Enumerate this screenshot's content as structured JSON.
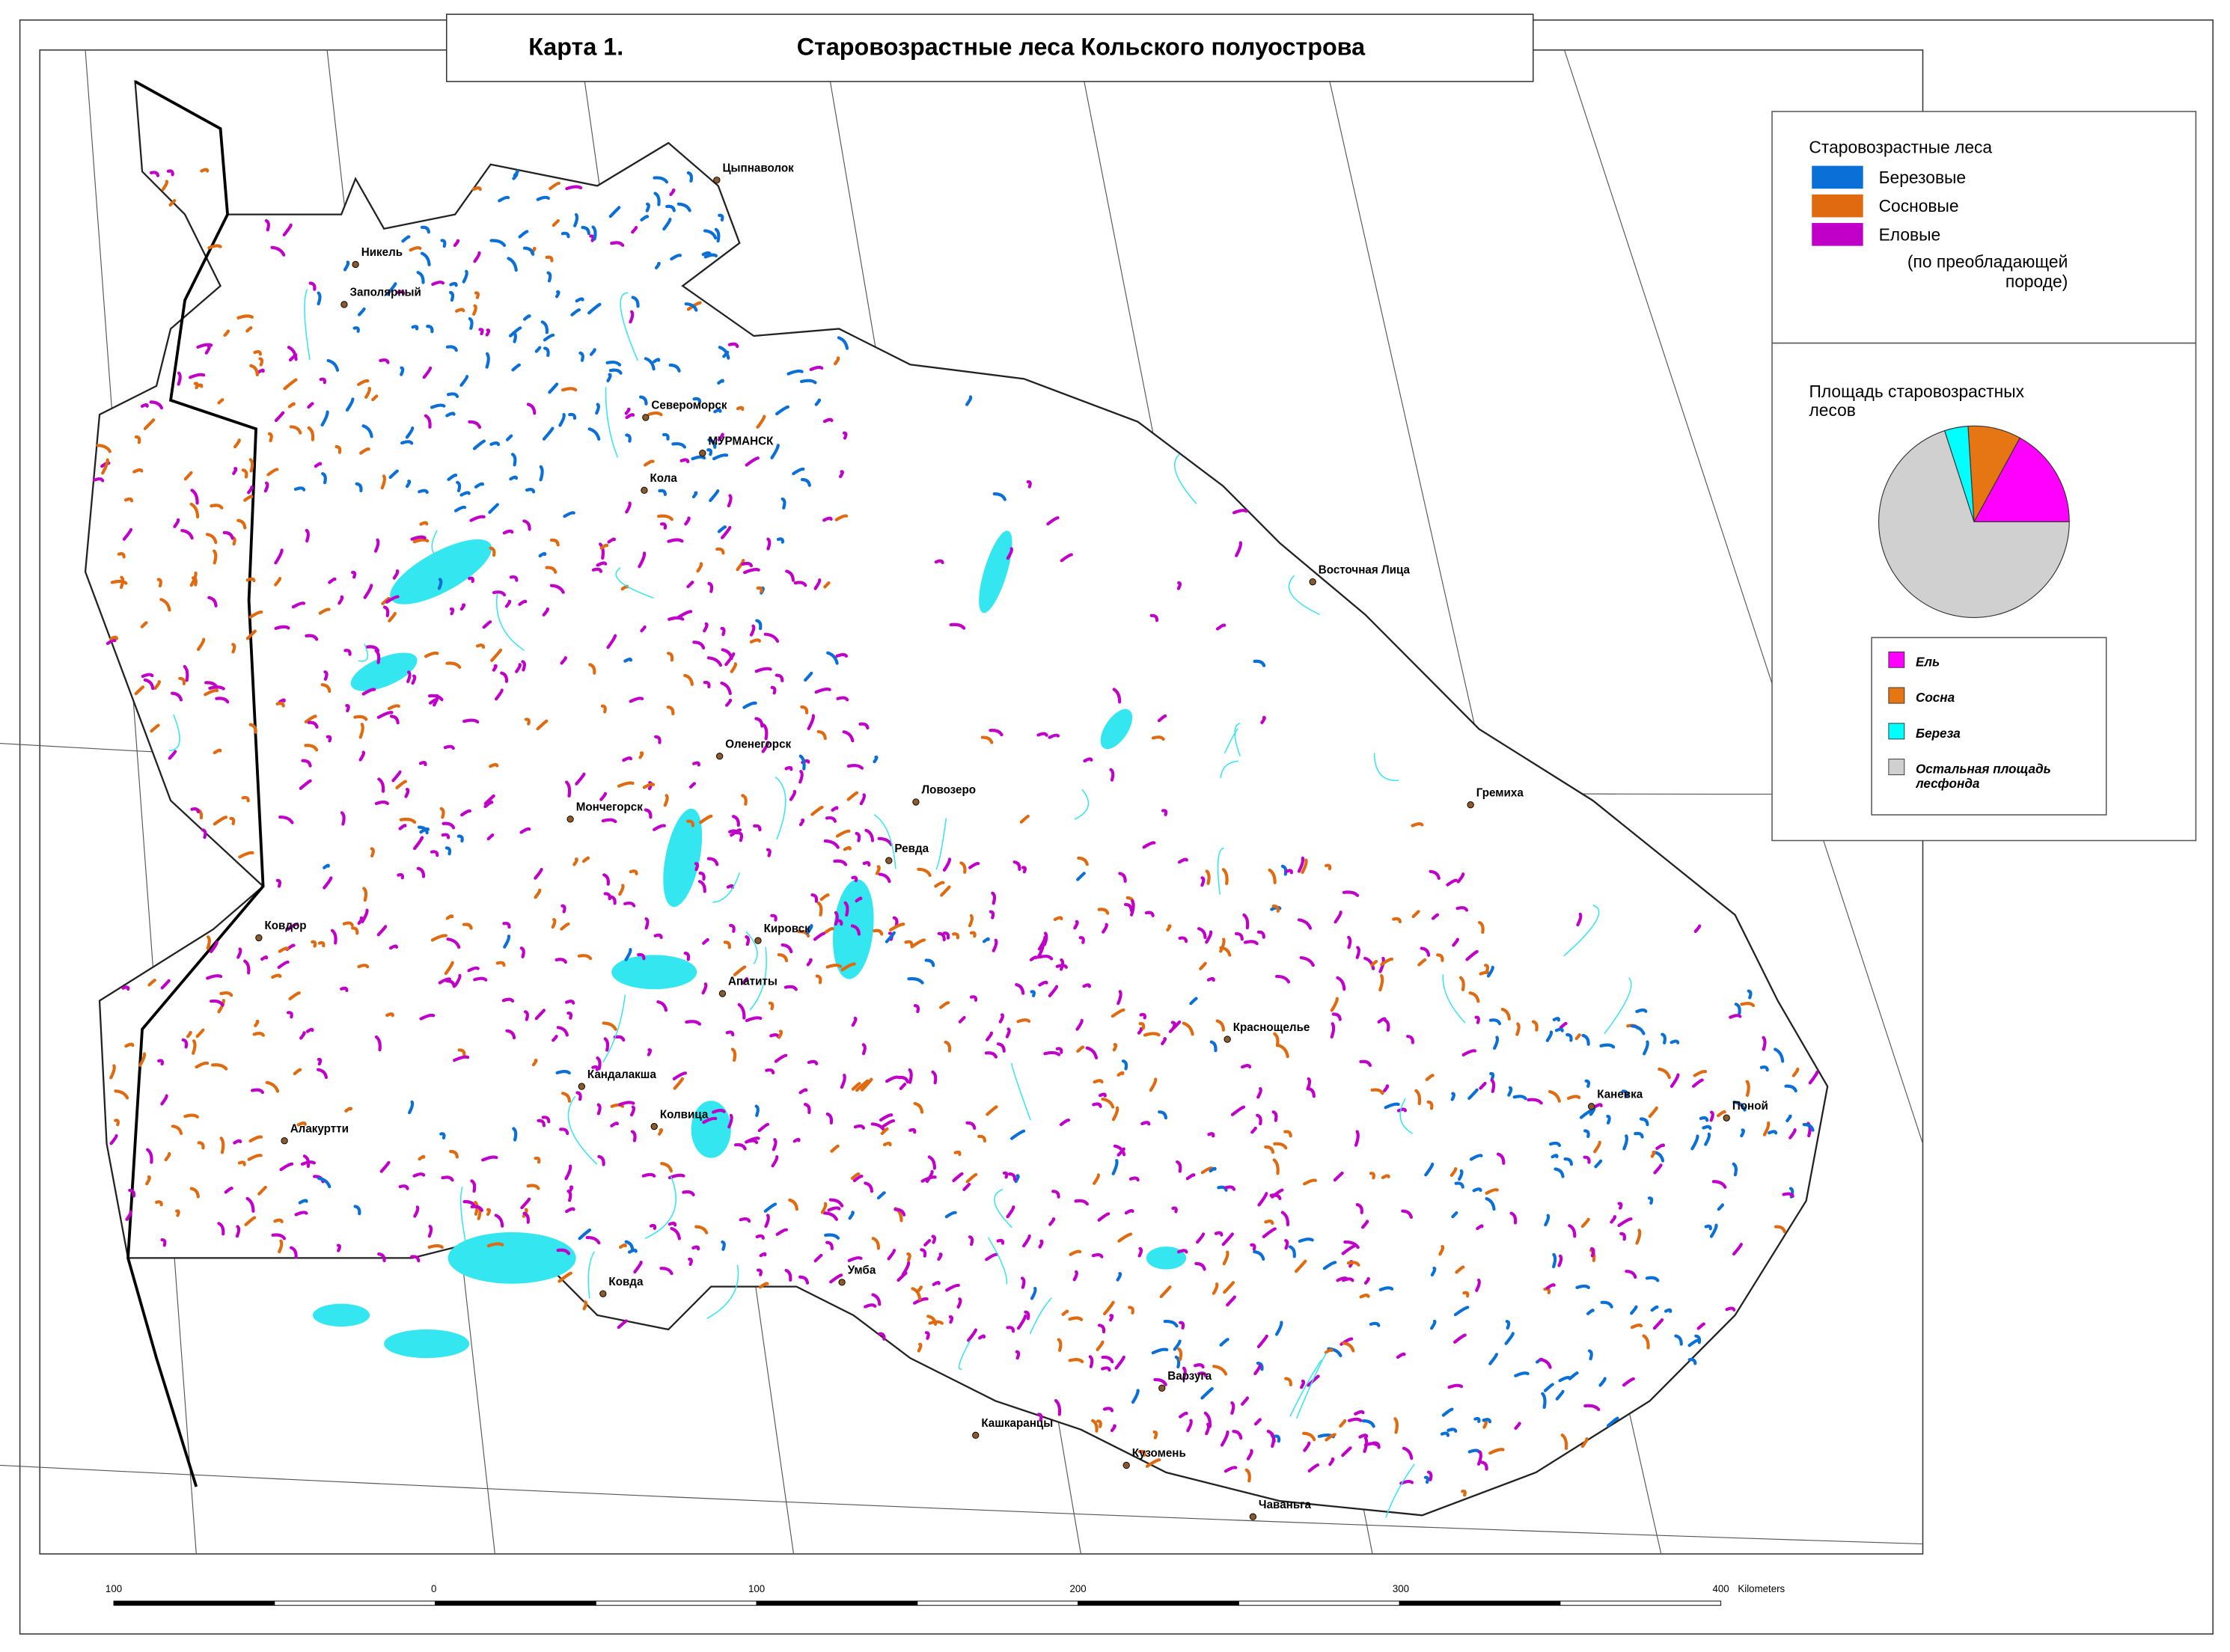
{
  "title": {
    "map_number": "Карта 1.",
    "text": "Старовозрастные леса Кольского полуострова"
  },
  "legend": {
    "title": "Старовозрастные леса",
    "items": [
      {
        "label": "Березовые",
        "color": "#0a6fd6"
      },
      {
        "label": "Сосновые",
        "color": "#e06a10"
      },
      {
        "label": "Еловые",
        "color": "#c000c8"
      }
    ],
    "note": "(по преобладающей породе)"
  },
  "pie": {
    "type": "pie",
    "title": "Площадь старовозрастных лесов",
    "slices": [
      {
        "name": "Ель",
        "color": "#ff00ff",
        "value": 17
      },
      {
        "name": "Сосна",
        "color": "#e67514",
        "value": 9
      },
      {
        "name": "Береза",
        "color": "#00ffff",
        "value": 4
      },
      {
        "name": "Остальная площадь лесфонда",
        "color": "#d0d0d0",
        "value": 70
      }
    ]
  },
  "places": [
    "Цыпнаволок",
    "Никель",
    "Заполярный",
    "Североморск",
    "МУРМАНСК",
    "Кола",
    "Восточная Лица",
    "Оленегорск",
    "Ловозеро",
    "Мончегорск",
    "Ревда",
    "Гремиха",
    "Ковдор",
    "Кировск",
    "Апатиты",
    "Краснощелье",
    "Кандалакша",
    "Колвица",
    "Алакуртти",
    "Каневка",
    "Поной",
    "Ковда",
    "Умба",
    "Варзуга",
    "Кашкаранцы",
    "Кузомень",
    "Чаваньга"
  ],
  "lake_color": "#33e6f0",
  "scale": {
    "labels": [
      "100",
      "0",
      "100",
      "200",
      "300",
      "400"
    ],
    "unit": "Kilometers"
  }
}
